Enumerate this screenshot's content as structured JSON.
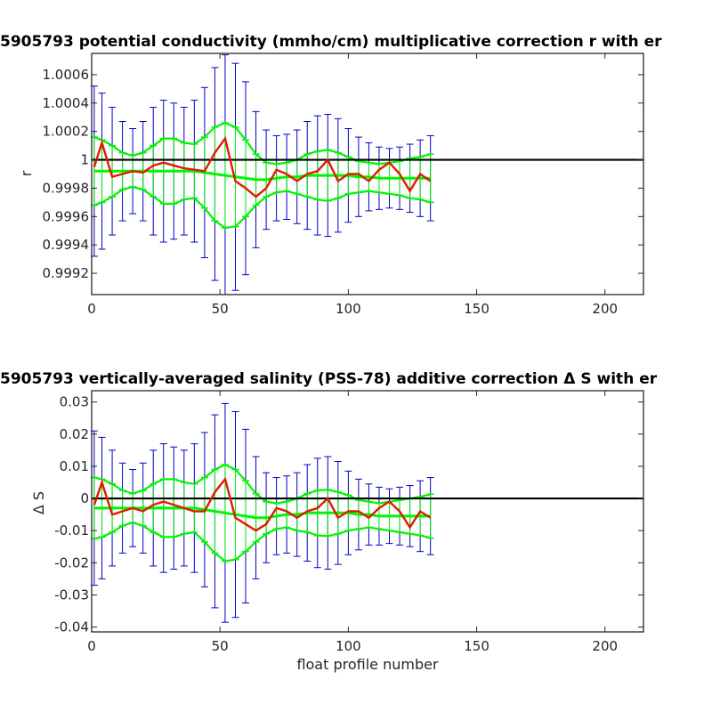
{
  "chart_data": [
    {
      "type": "line",
      "title": "5905793 potential conductivity (mmho/cm) multiplicative correction r with er",
      "xlabel": "",
      "ylabel": "r",
      "xlim": [
        0,
        215
      ],
      "ylim": [
        0.99905,
        1.00075
      ],
      "xticks": [
        0,
        50,
        100,
        150,
        200
      ],
      "xtick_labels": [
        "0",
        "50",
        "100",
        "150",
        "200"
      ],
      "yticks": [
        0.9992,
        0.9994,
        0.9996,
        0.9998,
        1.0,
        1.0002,
        1.0004,
        1.0006
      ],
      "ytick_labels": [
        "0.9992",
        "0.9994",
        "0.9996",
        "0.9998",
        "1",
        "1.0002",
        "1.0004",
        "1.0006"
      ],
      "reference_line": 1.0,
      "grid": false,
      "x": [
        1,
        4,
        8,
        12,
        16,
        20,
        24,
        28,
        32,
        36,
        40,
        44,
        48,
        52,
        56,
        60,
        64,
        68,
        72,
        76,
        80,
        84,
        88,
        92,
        96,
        100,
        104,
        108,
        112,
        116,
        120,
        124,
        128,
        132
      ],
      "series": [
        {
          "role": "correction",
          "color": "#e11b00",
          "values": [
            0.99995,
            1.00012,
            0.99988,
            0.9999,
            0.99992,
            0.99991,
            0.99996,
            0.99998,
            0.99996,
            0.99994,
            0.99993,
            0.99992,
            1.00005,
            1.00015,
            0.99985,
            0.9998,
            0.99974,
            0.9998,
            0.99993,
            0.9999,
            0.99985,
            0.9999,
            0.99992,
            1.0,
            0.99985,
            0.9999,
            0.9999,
            0.99985,
            0.99993,
            0.99998,
            0.9999,
            0.99978,
            0.9999,
            0.99985
          ]
        },
        {
          "role": "mean",
          "color": "#00f500",
          "values": [
            0.99992,
            0.99992,
            0.99992,
            0.99992,
            0.99992,
            0.99992,
            0.99992,
            0.99992,
            0.99992,
            0.99992,
            0.99992,
            0.99991,
            0.9999,
            0.99989,
            0.99988,
            0.99987,
            0.99986,
            0.99986,
            0.99987,
            0.99988,
            0.99988,
            0.99989,
            0.99989,
            0.99989,
            0.99989,
            0.99989,
            0.99988,
            0.99988,
            0.99987,
            0.99987,
            0.99987,
            0.99987,
            0.99987,
            0.99987
          ]
        }
      ],
      "small_error": [
        0.00024,
        0.00022,
        0.00018,
        0.00013,
        0.00011,
        0.00013,
        0.00018,
        0.00023,
        0.00023,
        0.0002,
        0.00019,
        0.00025,
        0.00033,
        0.00037,
        0.00035,
        0.00027,
        0.00018,
        0.00012,
        0.0001,
        0.0001,
        0.00012,
        0.00015,
        0.00017,
        0.00018,
        0.00016,
        0.00013,
        0.00011,
        0.0001,
        0.0001,
        0.00011,
        0.00012,
        0.00014,
        0.00015,
        0.00017
      ],
      "large_error": [
        0.0006,
        0.00055,
        0.00045,
        0.00035,
        0.0003,
        0.00035,
        0.00045,
        0.0005,
        0.00048,
        0.00045,
        0.0005,
        0.0006,
        0.00075,
        0.00085,
        0.0008,
        0.00068,
        0.00048,
        0.00035,
        0.0003,
        0.0003,
        0.00033,
        0.00038,
        0.00042,
        0.00043,
        0.0004,
        0.00033,
        0.00028,
        0.00024,
        0.00022,
        0.00021,
        0.00022,
        0.00024,
        0.00027,
        0.0003
      ]
    },
    {
      "type": "line",
      "title": "5905793 vertically-averaged salinity (PSS-78) additive correction Δ S with er",
      "xlabel": "float profile number",
      "ylabel": "Δ S",
      "xlim": [
        0,
        215
      ],
      "ylim": [
        -0.0415,
        0.0335
      ],
      "xticks": [
        0,
        50,
        100,
        150,
        200
      ],
      "xtick_labels": [
        "0",
        "50",
        "100",
        "150",
        "200"
      ],
      "yticks": [
        -0.04,
        -0.03,
        -0.02,
        -0.01,
        0,
        0.01,
        0.02,
        0.03
      ],
      "ytick_labels": [
        "-0.04",
        "-0.03",
        "-0.02",
        "-0.01",
        "0",
        "0.01",
        "0.02",
        "0.03"
      ],
      "reference_line": 0,
      "grid": false,
      "x": [
        1,
        4,
        8,
        12,
        16,
        20,
        24,
        28,
        32,
        36,
        40,
        44,
        48,
        52,
        56,
        60,
        64,
        68,
        72,
        76,
        80,
        84,
        88,
        92,
        96,
        100,
        104,
        108,
        112,
        116,
        120,
        124,
        128,
        132
      ],
      "series": [
        {
          "role": "correction",
          "color": "#e11b00",
          "values": [
            -0.002,
            0.005,
            -0.005,
            -0.004,
            -0.003,
            -0.004,
            -0.002,
            -0.001,
            -0.002,
            -0.003,
            -0.004,
            -0.004,
            0.002,
            0.006,
            -0.006,
            -0.008,
            -0.01,
            -0.008,
            -0.003,
            -0.004,
            -0.006,
            -0.004,
            -0.003,
            0.0,
            -0.006,
            -0.004,
            -0.004,
            -0.006,
            -0.003,
            -0.001,
            -0.004,
            -0.009,
            -0.004,
            -0.006
          ]
        },
        {
          "role": "mean",
          "color": "#00f500",
          "values": [
            -0.003,
            -0.003,
            -0.003,
            -0.003,
            -0.003,
            -0.003,
            -0.003,
            -0.003,
            -0.003,
            -0.003,
            -0.003,
            -0.0035,
            -0.004,
            -0.0045,
            -0.005,
            -0.0055,
            -0.006,
            -0.006,
            -0.0055,
            -0.005,
            -0.005,
            -0.0045,
            -0.0045,
            -0.0045,
            -0.0045,
            -0.0045,
            -0.005,
            -0.005,
            -0.0055,
            -0.0055,
            -0.0055,
            -0.0055,
            -0.0055,
            -0.0055
          ]
        }
      ],
      "small_error": [
        0.0095,
        0.009,
        0.0075,
        0.0055,
        0.0045,
        0.0055,
        0.0075,
        0.009,
        0.009,
        0.008,
        0.0075,
        0.01,
        0.013,
        0.015,
        0.014,
        0.011,
        0.0075,
        0.005,
        0.004,
        0.004,
        0.005,
        0.006,
        0.007,
        0.0072,
        0.0065,
        0.0055,
        0.0045,
        0.004,
        0.004,
        0.0045,
        0.005,
        0.0055,
        0.006,
        0.0068
      ],
      "large_error": [
        0.024,
        0.022,
        0.018,
        0.014,
        0.012,
        0.014,
        0.018,
        0.02,
        0.019,
        0.018,
        0.02,
        0.024,
        0.03,
        0.034,
        0.032,
        0.027,
        0.019,
        0.014,
        0.012,
        0.012,
        0.013,
        0.015,
        0.017,
        0.0175,
        0.016,
        0.013,
        0.011,
        0.0095,
        0.009,
        0.0085,
        0.009,
        0.0095,
        0.011,
        0.012
      ]
    }
  ],
  "colors": {
    "correction": "#e11b00",
    "small_error": "#00f500",
    "large_error": "#0000c8",
    "reference": "#000000",
    "axes": "#262626"
  }
}
